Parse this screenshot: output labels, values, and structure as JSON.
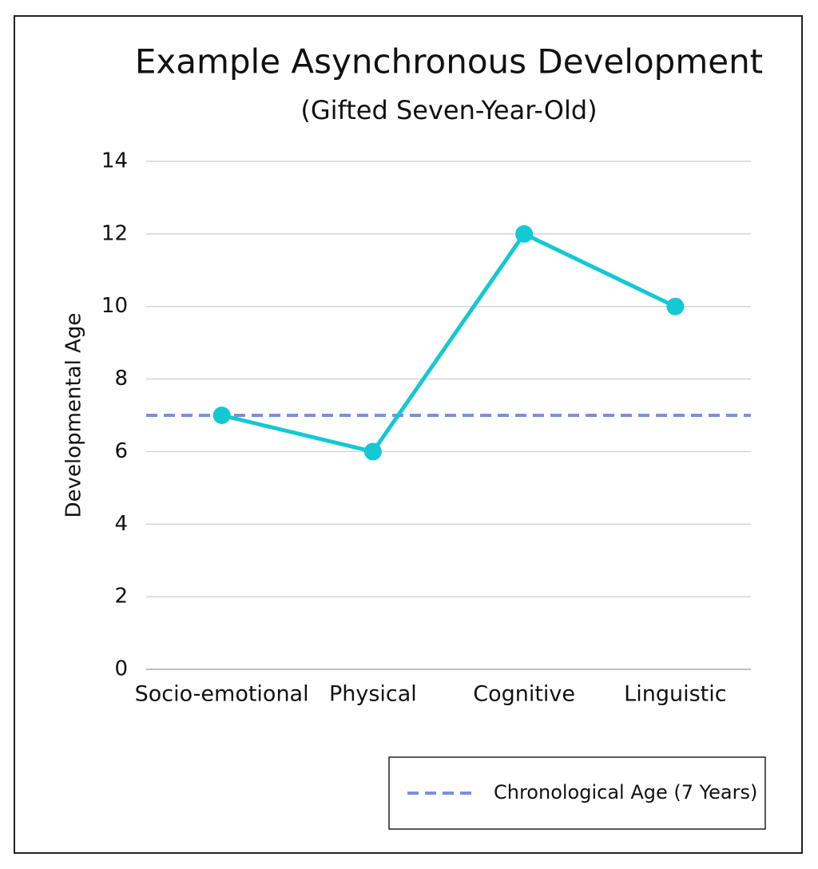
{
  "chart_data": {
    "type": "line",
    "title": "Example Asynchronous Development",
    "subtitle": "(Gifted Seven-Year-Old)",
    "y_label": "Developmental Age",
    "categories": [
      "Socio-emotional",
      "Physical",
      "Cognitive",
      "Linguistic"
    ],
    "values": [
      7,
      6,
      12,
      10
    ],
    "color": "#14c8d4",
    "reference_lines": [
      {
        "name": "Chronological Age (7 Years)",
        "value": 7,
        "color": "#7b8ee0",
        "dashed": true
      }
    ],
    "ylim": [
      0,
      14
    ],
    "yticks": [
      0,
      2,
      4,
      6,
      8,
      10,
      12,
      14
    ],
    "grid": true,
    "legend": "bottom-right"
  }
}
